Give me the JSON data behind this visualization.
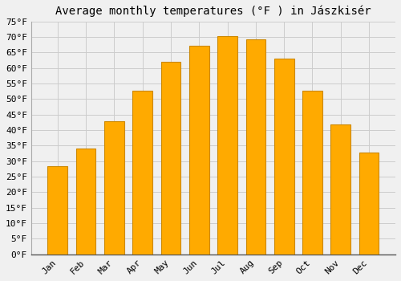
{
  "title": "Average monthly temperatures (°F ) in Jászkisér",
  "months": [
    "Jan",
    "Feb",
    "Mar",
    "Apr",
    "May",
    "Jun",
    "Jul",
    "Aug",
    "Sep",
    "Oct",
    "Nov",
    "Dec"
  ],
  "values": [
    28.4,
    34.0,
    43.0,
    52.7,
    62.1,
    67.3,
    70.3,
    69.3,
    63.1,
    52.7,
    41.9,
    32.9
  ],
  "bar_color": "#FFAA00",
  "bar_edge_color": "#CC8800",
  "ylim": [
    0,
    75
  ],
  "yticks": [
    0,
    5,
    10,
    15,
    20,
    25,
    30,
    35,
    40,
    45,
    50,
    55,
    60,
    65,
    70,
    75
  ],
  "background_color": "#f0f0f0",
  "plot_bg_color": "#f0f0f0",
  "grid_color": "#cccccc",
  "title_fontsize": 10,
  "tick_fontsize": 8,
  "font_family": "monospace",
  "bar_width": 0.7
}
